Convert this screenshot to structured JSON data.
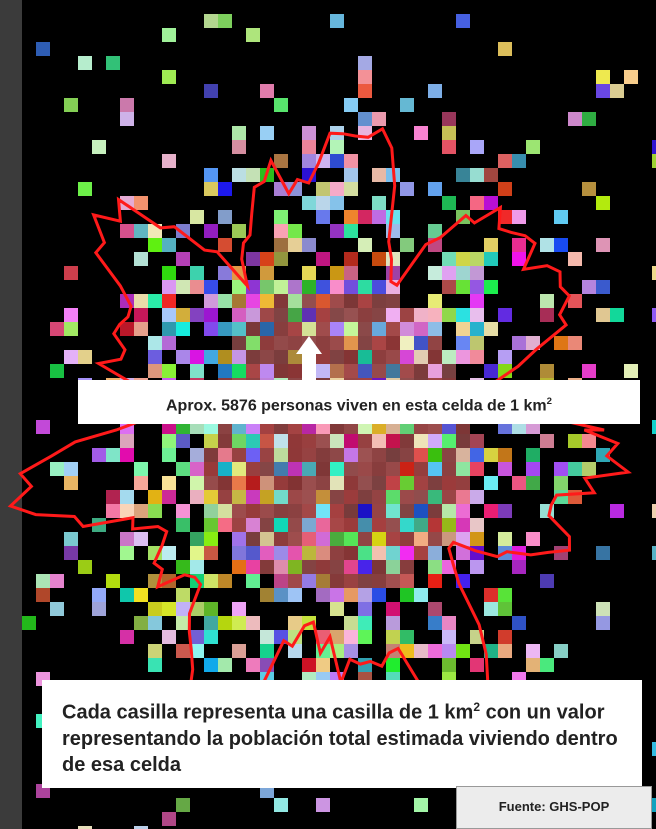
{
  "callout": {
    "text": "Aprox. 5876 personas viven en esta celda de 1 km",
    "sup": "2"
  },
  "caption": {
    "before": "Cada casilla representa una casilla de 1 km",
    "sup": "2",
    "after": " con un valor representando la población total estimada viviendo dentro de esa celda"
  },
  "source": "Fuente: GHS-POP"
}
